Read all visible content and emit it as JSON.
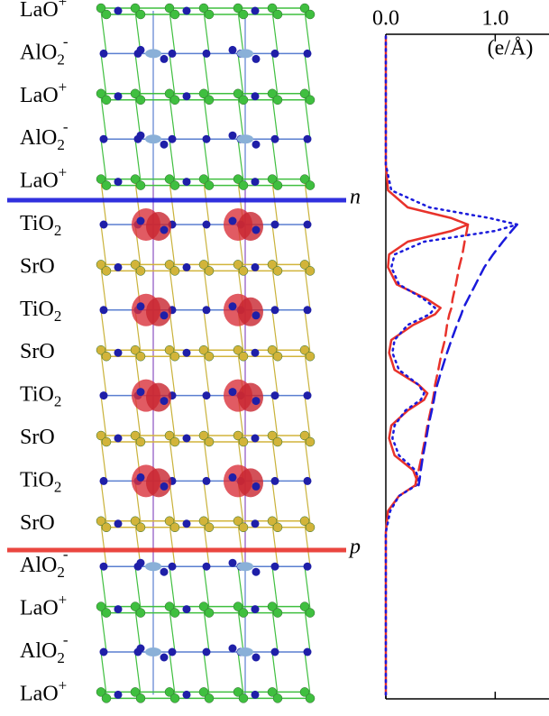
{
  "layers": [
    {
      "text": "LaO",
      "sup": "+"
    },
    {
      "text": "AlO",
      "sub": "2",
      "sup": "-"
    },
    {
      "text": "LaO",
      "sup": "+"
    },
    {
      "text": "AlO",
      "sub": "2",
      "sup": "-"
    },
    {
      "text": "LaO",
      "sup": "+"
    },
    {
      "text": "TiO",
      "sub": "2"
    },
    {
      "text": "SrO"
    },
    {
      "text": "TiO",
      "sub": "2"
    },
    {
      "text": "SrO"
    },
    {
      "text": "TiO",
      "sub": "2"
    },
    {
      "text": "SrO"
    },
    {
      "text": "TiO",
      "sub": "2"
    },
    {
      "text": "SrO"
    },
    {
      "text": "AlO",
      "sub": "2",
      "sup": "-"
    },
    {
      "text": "LaO",
      "sup": "+"
    },
    {
      "text": "AlO",
      "sub": "2",
      "sup": "-"
    },
    {
      "text": "LaO",
      "sup": "+"
    }
  ],
  "interfaces": [
    {
      "label": "n",
      "color": "#1a1adb"
    },
    {
      "label": "p",
      "color": "#e8322b"
    }
  ],
  "chart_data": {
    "type": "line",
    "orientation": "vertical",
    "xlabel": "(e/Å)",
    "xlim": [
      0,
      1.5
    ],
    "xticks": [
      {
        "value": 0,
        "label": "0.0"
      },
      {
        "value": 1,
        "label": "1.0"
      }
    ],
    "ylim": [
      0.55,
      16
    ],
    "x": [
      0.6,
      3.6,
      4.2,
      4.6,
      4.85,
      5.0,
      5.15,
      5.4,
      5.7,
      6.0,
      6.4,
      6.75,
      6.95,
      7.1,
      7.35,
      7.7,
      8.0,
      8.4,
      8.75,
      8.95,
      9.1,
      9.35,
      9.7,
      10.0,
      10.4,
      10.75,
      10.95,
      11.1,
      11.35,
      11.7,
      12.2,
      16.0
    ],
    "series": [
      {
        "color": "#e8322b",
        "dash": "solid",
        "values": [
          0,
          0,
          0.02,
          0.2,
          0.6,
          0.75,
          0.6,
          0.2,
          0.03,
          0.02,
          0.1,
          0.38,
          0.5,
          0.45,
          0.25,
          0.05,
          0.03,
          0.08,
          0.3,
          0.38,
          0.35,
          0.2,
          0.05,
          0.03,
          0.08,
          0.25,
          0.28,
          0.27,
          0.12,
          0.02,
          0,
          0
        ]
      },
      {
        "color": "#1a1adb",
        "dash": "dotted",
        "values": [
          0,
          0,
          0.05,
          0.4,
          0.95,
          1.2,
          1.0,
          0.35,
          0.08,
          0.05,
          0.12,
          0.35,
          0.45,
          0.4,
          0.2,
          0.08,
          0.06,
          0.12,
          0.3,
          0.35,
          0.32,
          0.18,
          0.08,
          0.06,
          0.12,
          0.27,
          0.3,
          0.28,
          0.12,
          0.04,
          0,
          0
        ]
      },
      {
        "color": "#e8322b",
        "dash": "dashed",
        "values": [
          null,
          null,
          null,
          null,
          null,
          0.75,
          0.74,
          0.72,
          0.7,
          0.67,
          0.64,
          0.61,
          0.6,
          0.58,
          0.56,
          0.54,
          0.51,
          0.48,
          0.45,
          0.44,
          0.43,
          0.41,
          0.38,
          0.36,
          0.33,
          0.3,
          0.28,
          0.27,
          null,
          null,
          null,
          null
        ]
      },
      {
        "color": "#1a1adb",
        "dash": "dashed",
        "values": [
          null,
          null,
          null,
          null,
          null,
          1.2,
          1.15,
          1.07,
          0.98,
          0.9,
          0.82,
          0.75,
          0.71,
          0.69,
          0.65,
          0.6,
          0.56,
          0.51,
          0.47,
          0.45,
          0.44,
          0.42,
          0.39,
          0.37,
          0.34,
          0.32,
          0.31,
          0.3,
          null,
          null,
          null,
          null
        ]
      }
    ]
  }
}
